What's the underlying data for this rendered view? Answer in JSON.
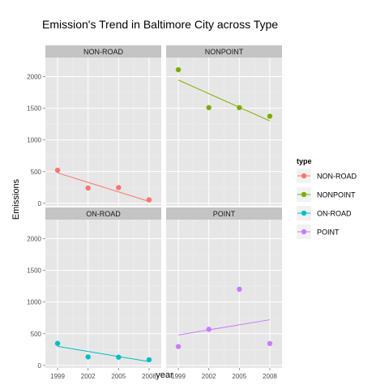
{
  "chart_data": {
    "type": "scatter",
    "title": "Emission's Trend in Baltimore City across Type",
    "xlabel": "year",
    "ylabel": "Emissions",
    "x_ticks": [
      1999,
      2002,
      2005,
      2008
    ],
    "y_ticks": [
      0,
      500,
      1000,
      1500,
      2000
    ],
    "ylim": [
      -40,
      2300
    ],
    "grid": true,
    "legend": {
      "title": "type",
      "position": "right"
    },
    "panels": [
      {
        "name": "NON-ROAD",
        "color": "#F8766D",
        "x": [
          1999,
          2002,
          2005,
          2008
        ],
        "y": [
          522,
          241,
          248,
          55
        ],
        "trend": {
          "x": [
            1999,
            2008
          ],
          "y": [
            480,
            30
          ]
        }
      },
      {
        "name": "NONPOINT",
        "color": "#7CAE00",
        "x": [
          1999,
          2002,
          2005,
          2008
        ],
        "y": [
          2108,
          1510,
          1510,
          1374
        ],
        "trend": {
          "x": [
            1999,
            2008
          ],
          "y": [
            1945,
            1300
          ]
        }
      },
      {
        "name": "ON-ROAD",
        "color": "#00BFC4",
        "x": [
          1999,
          2002,
          2005,
          2008
        ],
        "y": [
          347,
          134,
          130,
          89
        ],
        "trend": {
          "x": [
            1999,
            2008
          ],
          "y": [
            300,
            60
          ]
        }
      },
      {
        "name": "POINT",
        "color": "#C77CFF",
        "x": [
          1999,
          2002,
          2005,
          2008
        ],
        "y": [
          297,
          569,
          1202,
          345
        ],
        "trend": {
          "x": [
            1999,
            2008
          ],
          "y": [
            480,
            720
          ]
        }
      }
    ]
  }
}
